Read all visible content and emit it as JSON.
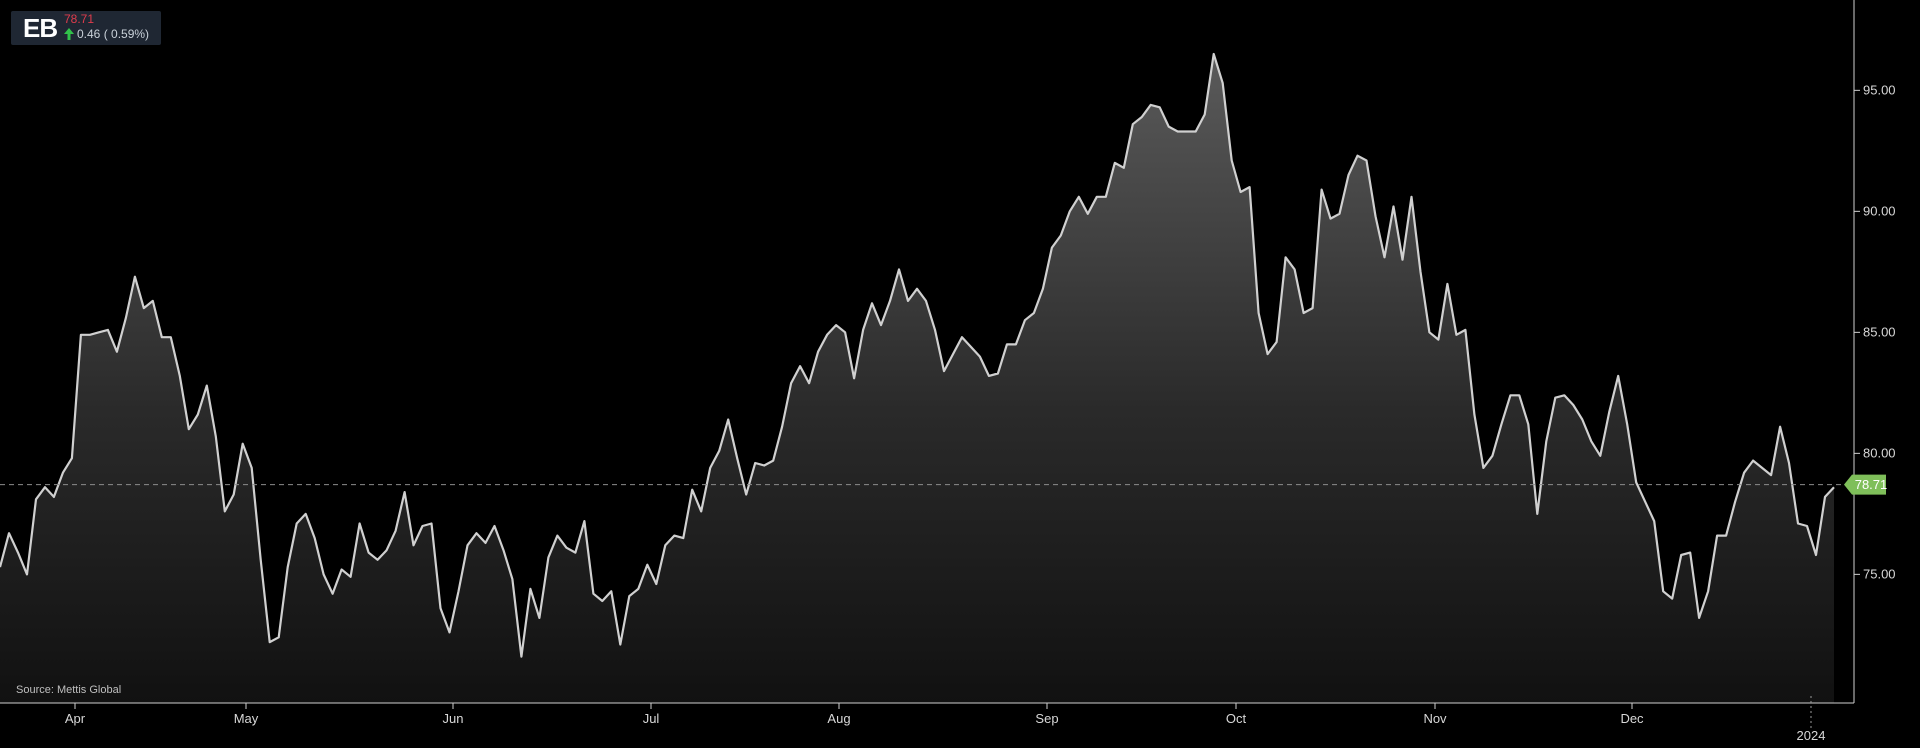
{
  "ticker": {
    "symbol": "EB",
    "price": "78.71",
    "change": "0.46 ( 0.59%)",
    "change_direction_icon": "arrow-up-icon",
    "up_color": "#31c24a",
    "price_color": "#e03c4c"
  },
  "source": "Source: Mettis Global",
  "chart_data": {
    "type": "area",
    "title": "",
    "xlabel": "",
    "ylabel": "",
    "x_tick_labels": [
      "Apr",
      "May",
      "Jun",
      "Jul",
      "Aug",
      "Sep",
      "Oct",
      "Nov",
      "Dec"
    ],
    "x_year_label": "2024",
    "y_tick_values": [
      75,
      80,
      85,
      90,
      95
    ],
    "y_tick_labels": [
      "75.00",
      "80.00",
      "85.00",
      "90.00",
      "95.00"
    ],
    "ylim": [
      70.8,
      97.7
    ],
    "y_axis_position": "right",
    "grid": false,
    "last_value": 78.71,
    "last_value_label": "78.71",
    "last_value_marker_color": "#7fbf5a",
    "line_color": "#d0d0d0",
    "series": [
      {
        "values": [
          75.3,
          76.7,
          75.9,
          75.0,
          78.1,
          78.6,
          78.2,
          79.2,
          79.8,
          84.9,
          84.9,
          85.0,
          85.1,
          84.2,
          85.6,
          87.3,
          86.0,
          86.3,
          84.8,
          84.8,
          83.2,
          81.0,
          81.6,
          82.8,
          80.7,
          77.6,
          78.3,
          80.4,
          79.4,
          75.6,
          72.2,
          72.4,
          75.3,
          77.1,
          77.5,
          76.5,
          75.0,
          74.2,
          75.2,
          74.9,
          77.1,
          75.9,
          75.6,
          76.0,
          76.8,
          78.4,
          76.2,
          77.0,
          77.1,
          73.6,
          72.6,
          74.3,
          76.2,
          76.7,
          76.3,
          77.0,
          76.0,
          74.8,
          71.6,
          74.4,
          73.2,
          75.7,
          76.6,
          76.1,
          75.9,
          77.2,
          74.2,
          73.9,
          74.3,
          72.1,
          74.1,
          74.4,
          75.4,
          74.6,
          76.2,
          76.6,
          76.5,
          78.5,
          77.6,
          79.4,
          80.1,
          81.4,
          79.8,
          78.3,
          79.6,
          79.5,
          79.7,
          81.1,
          82.9,
          83.6,
          82.9,
          84.2,
          84.9,
          85.3,
          85.0,
          83.1,
          85.1,
          86.2,
          85.3,
          86.3,
          87.6,
          86.3,
          86.8,
          86.3,
          85.1,
          83.4,
          84.1,
          84.8,
          84.4,
          84.0,
          83.2,
          83.3,
          84.5,
          84.5,
          85.5,
          85.8,
          86.8,
          88.5,
          89.0,
          90.0,
          90.6,
          89.9,
          90.6,
          90.6,
          92.0,
          91.8,
          93.6,
          93.9,
          94.4,
          94.3,
          93.5,
          93.3,
          93.3,
          93.3,
          94.0,
          96.5,
          95.3,
          92.1,
          90.8,
          91.0,
          85.8,
          84.1,
          84.6,
          88.1,
          87.6,
          85.8,
          86.0,
          90.9,
          89.7,
          89.9,
          91.5,
          92.3,
          92.1,
          89.8,
          88.1,
          90.2,
          88.0,
          90.6,
          87.5,
          85.0,
          84.7,
          87.0,
          84.9,
          85.1,
          81.6,
          79.4,
          79.9,
          81.2,
          82.4,
          82.4,
          81.2,
          77.5,
          80.5,
          82.3,
          82.4,
          82.0,
          81.4,
          80.5,
          79.9,
          81.7,
          83.2,
          81.2,
          78.8,
          78.0,
          77.2,
          74.3,
          74.0,
          75.8,
          75.9,
          73.2,
          74.3,
          76.6,
          76.6,
          78.0,
          79.2,
          79.7,
          79.4,
          79.1,
          81.1,
          79.6,
          77.1,
          77.0,
          75.8,
          78.2,
          78.6
        ]
      }
    ]
  }
}
